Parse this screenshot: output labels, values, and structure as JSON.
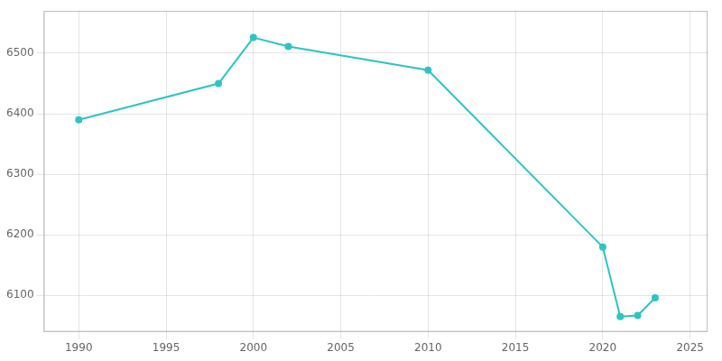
{
  "chart_data": {
    "type": "line",
    "x": [
      1990,
      1998,
      2000,
      2002,
      2010,
      2020,
      2021,
      2022,
      2023
    ],
    "values": [
      6390,
      6450,
      6526,
      6511,
      6472,
      6180,
      6065,
      6067,
      6096
    ],
    "color": "#2EC4C4",
    "marker": "circle",
    "xlim": [
      1988,
      2026
    ],
    "ylim": [
      6040,
      6570
    ],
    "xticks": [
      1990,
      1995,
      2000,
      2005,
      2010,
      2015,
      2020,
      2025
    ],
    "yticks": [
      6100,
      6200,
      6300,
      6400,
      6500
    ],
    "grid": true
  }
}
